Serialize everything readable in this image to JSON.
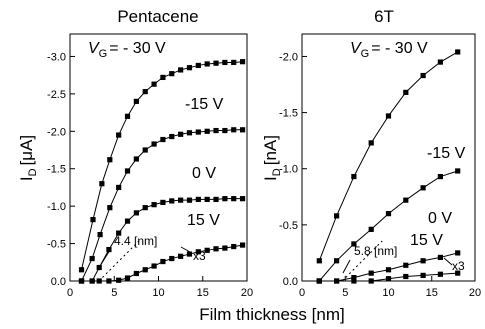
{
  "chart_data": [
    {
      "type": "line",
      "title": "Pentacene",
      "ylabel": "I_D [μA]",
      "ylabel_main": "I",
      "ylabel_sub": "D",
      "ylabel_unit": "[μA]",
      "xlim": [
        0,
        20
      ],
      "ylim": [
        0,
        -3.3
      ],
      "xticks": [
        0,
        5,
        10,
        15,
        20
      ],
      "yticks": [
        -0.5,
        -1.0,
        -1.5,
        -2.0,
        -2.5,
        -3.0
      ],
      "ytick_labels": [
        "-0.5",
        "-1.0",
        "-1.5",
        "-2.0",
        "-2.5",
        "-3.0"
      ],
      "xtick_labels": [
        "0",
        "5",
        "10",
        "15",
        "20"
      ],
      "grid": false,
      "series": [
        {
          "name": "V_G = - 30 V",
          "x": [
            1.3,
            2.6,
            3.6,
            4.5,
            5.5,
            6.5,
            7.5,
            8.5,
            9.5,
            10.5,
            11.5,
            12.5,
            13.5,
            14.5,
            15.5,
            16.5,
            17.5,
            18.5,
            19.5
          ],
          "y": [
            -0.15,
            -0.82,
            -1.3,
            -1.62,
            -1.95,
            -2.2,
            -2.4,
            -2.53,
            -2.63,
            -2.72,
            -2.77,
            -2.82,
            -2.85,
            -2.88,
            -2.9,
            -2.91,
            -2.92,
            -2.92,
            -2.93
          ]
        },
        {
          "name": "-15 V",
          "x": [
            1.3,
            2.5,
            3.4,
            4.5,
            5.5,
            6.5,
            7.5,
            8.5,
            9.5,
            10.5,
            11.5,
            12.5,
            13.5,
            14.5,
            15.5,
            16.5,
            17.5,
            18.5,
            19.5
          ],
          "y": [
            0,
            -0.3,
            -0.62,
            -0.98,
            -1.25,
            -1.47,
            -1.63,
            -1.75,
            -1.83,
            -1.89,
            -1.93,
            -1.96,
            -1.98,
            -1.99,
            -2.0,
            -2.01,
            -2.01,
            -2.02,
            -2.02
          ]
        },
        {
          "name": "0 V",
          "x": [
            1.3,
            2.5,
            3.3,
            4.4,
            5.5,
            6.5,
            7.5,
            8.5,
            9.5,
            10.5,
            11.5,
            12.5,
            13.5,
            14.5,
            15.5,
            16.5,
            17.5,
            18.5,
            19.5
          ],
          "y": [
            0,
            0,
            -0.18,
            -0.42,
            -0.64,
            -0.8,
            -0.91,
            -0.98,
            -1.02,
            -1.05,
            -1.07,
            -1.08,
            -1.08,
            -1.09,
            -1.09,
            -1.09,
            -1.1,
            -1.1,
            -1.1
          ]
        },
        {
          "name": "15 V",
          "x": [
            1.3,
            2.5,
            3.3,
            4.4,
            5.5,
            6.5,
            7.5,
            8.5,
            9.5,
            10.5,
            11.5,
            12.5,
            13.5,
            14.5,
            15.5,
            16.5,
            17.5,
            18.5,
            19.5
          ],
          "y": [
            0,
            0,
            0,
            0,
            -0.01,
            -0.04,
            -0.1,
            -0.15,
            -0.2,
            -0.26,
            -0.3,
            -0.33,
            -0.36,
            -0.39,
            -0.41,
            -0.43,
            -0.44,
            -0.46,
            -0.48
          ]
        }
      ],
      "annotations": [
        {
          "text": "V_G = - 30 V",
          "main": "V",
          "sub": "G",
          "rest": "= - 30 V"
        },
        {
          "text": "-15 V"
        },
        {
          "text": "0 V"
        },
        {
          "text": "15 V"
        },
        {
          "text": "4.4 [nm]"
        },
        {
          "text": "x3"
        }
      ],
      "marker_x": 4.4
    },
    {
      "type": "line",
      "title": "6T",
      "ylabel": "I_D [nA]",
      "ylabel_main": "I",
      "ylabel_sub": "D",
      "ylabel_unit": "[nA]",
      "xlim": [
        0,
        20
      ],
      "ylim": [
        0,
        -2.2
      ],
      "xticks": [
        0,
        5,
        10,
        15,
        20
      ],
      "yticks": [
        -0.5,
        -1.0,
        -1.5,
        -2.0
      ],
      "ytick_labels": [
        "-0.5",
        "-1.0",
        "-1.5",
        "-2.0"
      ],
      "xtick_labels": [
        "0",
        "5",
        "10",
        "15",
        "20"
      ],
      "grid": false,
      "series": [
        {
          "name": "V_G = - 30 V",
          "x": [
            2,
            4,
            6,
            8,
            10,
            12,
            14,
            16,
            18
          ],
          "y": [
            -0.18,
            -0.58,
            -0.93,
            -1.23,
            -1.47,
            -1.68,
            -1.83,
            -1.95,
            -2.04
          ]
        },
        {
          "name": "-15 V",
          "x": [
            2,
            4,
            6,
            8,
            10,
            12,
            14,
            16,
            18
          ],
          "y": [
            0,
            -0.18,
            -0.33,
            -0.46,
            -0.6,
            -0.72,
            -0.83,
            -0.93,
            -0.98
          ]
        },
        {
          "name": "0 V",
          "x": [
            2,
            4,
            6,
            8,
            10,
            12,
            14,
            16,
            18
          ],
          "y": [
            0,
            0,
            -0.03,
            -0.07,
            -0.1,
            -0.14,
            -0.18,
            -0.21,
            -0.25
          ]
        },
        {
          "name": "15 V",
          "x": [
            2,
            4,
            6,
            8,
            10,
            12,
            14,
            16,
            18
          ],
          "y": [
            0,
            0,
            0,
            0,
            -0.02,
            -0.04,
            -0.05,
            -0.06,
            -0.07
          ]
        }
      ],
      "annotations": [
        {
          "text": "V_G = - 30 V",
          "main": "V",
          "sub": "G",
          "rest": "= - 30 V"
        },
        {
          "text": "-15 V"
        },
        {
          "text": "0 V"
        },
        {
          "text": "15 V"
        },
        {
          "text": "5.8 [nm]"
        },
        {
          "text": "x3"
        }
      ],
      "marker_x": 5.8
    }
  ],
  "xlabel": "Film thickness [nm]"
}
